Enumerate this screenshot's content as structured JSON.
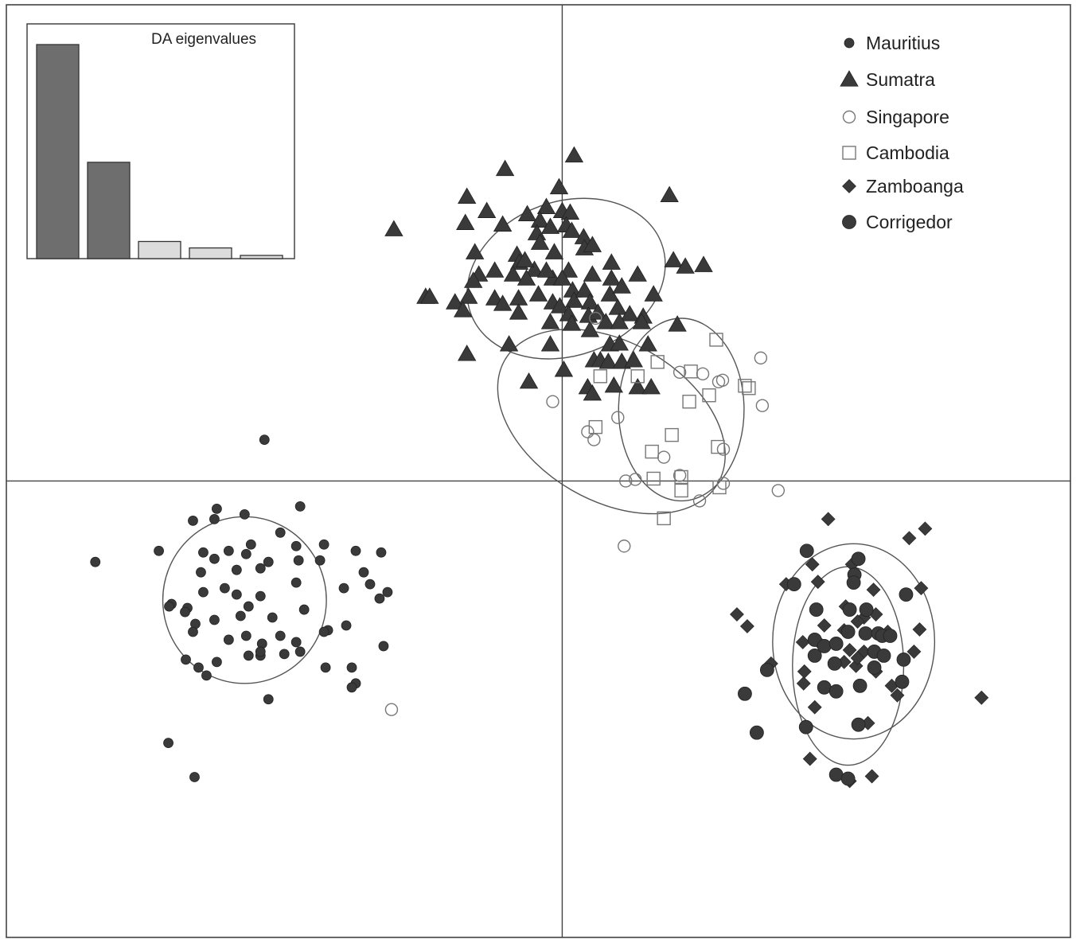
{
  "chart_data": {
    "type": "scatter",
    "title": "",
    "xlabel": "",
    "ylabel": "",
    "xlim": [
      -7,
      6.4
    ],
    "ylim": [
      -5.75,
      6
    ],
    "axes_cross_at": [
      0,
      0
    ],
    "grid": false,
    "legend_position": "top-right",
    "series": [
      {
        "name": "Mauritius",
        "marker": "small-filled-circle",
        "color": "#3a3a3a",
        "ellipse": {
          "cx": -4.0,
          "cy": -1.5,
          "rx": 1.03,
          "ry": 1.05,
          "angle": 0
        },
        "points": [
          [
            -3.75,
            0.52
          ],
          [
            -5.88,
            -1.02
          ],
          [
            -5.08,
            -0.88
          ],
          [
            -4.65,
            -0.5
          ],
          [
            -4.38,
            -0.48
          ],
          [
            -4.35,
            -0.35
          ],
          [
            -4.0,
            -0.42
          ],
          [
            -3.92,
            -0.8
          ],
          [
            -3.3,
            -0.32
          ],
          [
            -4.52,
            -0.9
          ],
          [
            -4.38,
            -0.98
          ],
          [
            -4.2,
            -0.88
          ],
          [
            -3.98,
            -0.92
          ],
          [
            -3.7,
            -1.02
          ],
          [
            -3.55,
            -0.65
          ],
          [
            -3.35,
            -0.82
          ],
          [
            -3.0,
            -0.8
          ],
          [
            -2.6,
            -0.88
          ],
          [
            -2.28,
            -0.9
          ],
          [
            -4.55,
            -1.15
          ],
          [
            -4.1,
            -1.12
          ],
          [
            -3.8,
            -1.1
          ],
          [
            -3.32,
            -1.0
          ],
          [
            -3.05,
            -1.0
          ],
          [
            -2.5,
            -1.15
          ],
          [
            -2.42,
            -1.3
          ],
          [
            -4.92,
            -1.55
          ],
          [
            -4.72,
            -1.6
          ],
          [
            -4.52,
            -1.4
          ],
          [
            -4.25,
            -1.35
          ],
          [
            -4.1,
            -1.43
          ],
          [
            -3.8,
            -1.45
          ],
          [
            -3.35,
            -1.28
          ],
          [
            -2.75,
            -1.35
          ],
          [
            -2.2,
            -1.4
          ],
          [
            -2.3,
            -1.48
          ],
          [
            -4.95,
            -1.58
          ],
          [
            -4.75,
            -1.65
          ],
          [
            -4.62,
            -1.8
          ],
          [
            -4.38,
            -1.75
          ],
          [
            -4.05,
            -1.7
          ],
          [
            -3.95,
            -1.58
          ],
          [
            -3.65,
            -1.72
          ],
          [
            -3.25,
            -1.62
          ],
          [
            -2.95,
            -1.88
          ],
          [
            -4.65,
            -1.9
          ],
          [
            -4.2,
            -2.0
          ],
          [
            -3.98,
            -1.95
          ],
          [
            -3.78,
            -2.05
          ],
          [
            -3.55,
            -1.95
          ],
          [
            -3.35,
            -2.03
          ],
          [
            -3.0,
            -1.9
          ],
          [
            -2.72,
            -1.82
          ],
          [
            -2.25,
            -2.08
          ],
          [
            -4.74,
            -2.25
          ],
          [
            -4.58,
            -2.35
          ],
          [
            -4.35,
            -2.28
          ],
          [
            -4.48,
            -2.45
          ],
          [
            -3.8,
            -2.2
          ],
          [
            -3.95,
            -2.2
          ],
          [
            -3.8,
            -2.15
          ],
          [
            -3.5,
            -2.18
          ],
          [
            -3.3,
            -2.15
          ],
          [
            -2.98,
            -2.35
          ],
          [
            -2.6,
            -2.55
          ],
          [
            -3.7,
            -2.75
          ],
          [
            -2.65,
            -2.35
          ],
          [
            -4.96,
            -3.3
          ],
          [
            -4.63,
            -3.73
          ],
          [
            -2.65,
            -2.6
          ]
        ]
      },
      {
        "name": "Sumatra",
        "marker": "filled-triangle",
        "color": "#3a3a3a",
        "ellipse": {
          "cx": 0.05,
          "cy": 2.55,
          "rx": 1.28,
          "ry": 0.97,
          "angle": 20
        },
        "points": [
          [
            0.15,
            4.1
          ],
          [
            -0.72,
            3.93
          ],
          [
            -0.04,
            3.7
          ],
          [
            0.0,
            3.4
          ],
          [
            1.35,
            3.6
          ],
          [
            -1.2,
            3.58
          ],
          [
            -0.95,
            3.4
          ],
          [
            -0.2,
            3.45
          ],
          [
            -0.44,
            3.36
          ],
          [
            -0.28,
            3.28
          ],
          [
            -0.15,
            3.2
          ],
          [
            0.1,
            3.38
          ],
          [
            0.05,
            3.22
          ],
          [
            -1.22,
            3.25
          ],
          [
            -0.75,
            3.23
          ],
          [
            -0.32,
            3.12
          ],
          [
            0.12,
            3.15
          ],
          [
            0.27,
            3.07
          ],
          [
            -2.12,
            3.17
          ],
          [
            -1.1,
            2.88
          ],
          [
            -0.57,
            2.85
          ],
          [
            -0.28,
            3.0
          ],
          [
            -0.1,
            2.88
          ],
          [
            0.28,
            2.93
          ],
          [
            0.38,
            2.97
          ],
          [
            0.62,
            2.75
          ],
          [
            1.4,
            2.78
          ],
          [
            1.55,
            2.7
          ],
          [
            1.78,
            2.72
          ],
          [
            -0.54,
            2.75
          ],
          [
            -0.35,
            2.66
          ],
          [
            -0.12,
            2.55
          ],
          [
            0.08,
            2.65
          ],
          [
            -1.05,
            2.6
          ],
          [
            -0.85,
            2.65
          ],
          [
            -0.47,
            2.78
          ],
          [
            -1.12,
            2.52
          ],
          [
            -0.62,
            2.6
          ],
          [
            -0.45,
            2.55
          ],
          [
            -0.2,
            2.65
          ],
          [
            0.0,
            2.55
          ],
          [
            0.13,
            2.4
          ],
          [
            0.38,
            2.6
          ],
          [
            0.62,
            2.55
          ],
          [
            0.95,
            2.6
          ],
          [
            -1.72,
            2.32
          ],
          [
            -1.67,
            2.32
          ],
          [
            -1.35,
            2.25
          ],
          [
            -1.18,
            2.32
          ],
          [
            -0.85,
            2.3
          ],
          [
            -0.55,
            2.3
          ],
          [
            -0.3,
            2.35
          ],
          [
            -0.12,
            2.25
          ],
          [
            0.15,
            2.27
          ],
          [
            0.28,
            2.4
          ],
          [
            0.35,
            2.25
          ],
          [
            0.6,
            2.35
          ],
          [
            0.75,
            2.45
          ],
          [
            1.15,
            2.35
          ],
          [
            -1.25,
            2.15
          ],
          [
            -0.75,
            2.23
          ],
          [
            -0.55,
            2.12
          ],
          [
            -0.03,
            2.2
          ],
          [
            0.08,
            2.1
          ],
          [
            0.33,
            2.08
          ],
          [
            0.45,
            2.12
          ],
          [
            0.7,
            2.18
          ],
          [
            0.85,
            2.1
          ],
          [
            1.02,
            2.07
          ],
          [
            -0.15,
            2.0
          ],
          [
            0.12,
            1.98
          ],
          [
            0.35,
            1.9
          ],
          [
            0.55,
            2.0
          ],
          [
            0.72,
            2.0
          ],
          [
            1.0,
            2.0
          ],
          [
            1.45,
            1.97
          ],
          [
            -1.2,
            1.6
          ],
          [
            -0.67,
            1.72
          ],
          [
            -0.15,
            1.72
          ],
          [
            0.6,
            1.72
          ],
          [
            0.72,
            1.73
          ],
          [
            1.08,
            1.72
          ],
          [
            0.4,
            1.52
          ],
          [
            0.48,
            1.52
          ],
          [
            0.58,
            1.5
          ],
          [
            0.75,
            1.5
          ],
          [
            0.9,
            1.52
          ],
          [
            0.02,
            1.4
          ],
          [
            -0.42,
            1.25
          ],
          [
            0.32,
            1.18
          ],
          [
            0.65,
            1.2
          ],
          [
            0.95,
            1.18
          ],
          [
            1.12,
            1.18
          ],
          [
            0.38,
            1.1
          ]
        ]
      },
      {
        "name": "Singapore",
        "marker": "open-circle",
        "color": "#777777",
        "ellipse": {
          "cx": 0.62,
          "cy": 0.75,
          "rx": 1.55,
          "ry": 1.0,
          "angle": -30
        },
        "points": [
          [
            0.42,
            2.05
          ],
          [
            2.5,
            1.55
          ],
          [
            1.48,
            1.37
          ],
          [
            1.77,
            1.35
          ],
          [
            1.97,
            1.25
          ],
          [
            2.02,
            1.27
          ],
          [
            2.52,
            0.95
          ],
          [
            -0.12,
            1.0
          ],
          [
            0.7,
            0.8
          ],
          [
            0.32,
            0.62
          ],
          [
            0.4,
            0.52
          ],
          [
            2.03,
            0.4
          ],
          [
            1.28,
            0.3
          ],
          [
            0.92,
            0.02
          ],
          [
            0.8,
            0.0
          ],
          [
            1.48,
            0.07
          ],
          [
            2.03,
            -0.03
          ],
          [
            2.72,
            -0.12
          ],
          [
            1.73,
            -0.25
          ],
          [
            0.78,
            -0.82
          ],
          [
            -2.15,
            -2.88
          ]
        ]
      },
      {
        "name": "Cambodia",
        "marker": "open-square",
        "color": "#777777",
        "ellipse": {
          "cx": 1.5,
          "cy": 0.9,
          "rx": 0.79,
          "ry": 1.15,
          "angle": 0
        },
        "points": [
          [
            1.94,
            1.78
          ],
          [
            0.48,
            1.32
          ],
          [
            1.2,
            1.5
          ],
          [
            1.62,
            1.38
          ],
          [
            1.85,
            1.08
          ],
          [
            2.3,
            1.2
          ],
          [
            2.35,
            1.17
          ],
          [
            0.95,
            1.32
          ],
          [
            1.6,
            1.0
          ],
          [
            0.42,
            0.68
          ],
          [
            1.38,
            0.58
          ],
          [
            1.13,
            0.37
          ],
          [
            1.96,
            0.43
          ],
          [
            1.15,
            0.03
          ],
          [
            1.5,
            0.05
          ],
          [
            1.5,
            -0.12
          ],
          [
            1.98,
            -0.08
          ],
          [
            1.28,
            -0.47
          ]
        ]
      },
      {
        "name": "Zamboanga",
        "marker": "filled-diamond",
        "color": "#3a3a3a",
        "ellipse": {
          "cx": 3.67,
          "cy": -2.02,
          "rx": 1.02,
          "ry": 1.23,
          "angle": 0
        },
        "points": [
          [
            3.35,
            -0.48
          ],
          [
            4.37,
            -0.72
          ],
          [
            4.57,
            -0.6
          ],
          [
            3.15,
            -1.05
          ],
          [
            3.65,
            -1.05
          ],
          [
            2.82,
            -1.3
          ],
          [
            3.22,
            -1.27
          ],
          [
            3.92,
            -1.37
          ],
          [
            4.52,
            -1.35
          ],
          [
            2.2,
            -1.68
          ],
          [
            2.33,
            -1.83
          ],
          [
            3.57,
            -1.58
          ],
          [
            3.8,
            -1.72
          ],
          [
            3.95,
            -1.68
          ],
          [
            3.3,
            -1.82
          ],
          [
            3.55,
            -1.88
          ],
          [
            3.72,
            -1.77
          ],
          [
            4.1,
            -1.9
          ],
          [
            4.5,
            -1.87
          ],
          [
            3.03,
            -2.03
          ],
          [
            3.25,
            -2.05
          ],
          [
            3.62,
            -2.13
          ],
          [
            3.8,
            -2.15
          ],
          [
            4.43,
            -2.15
          ],
          [
            2.63,
            -2.3
          ],
          [
            3.05,
            -2.4
          ],
          [
            3.55,
            -2.28
          ],
          [
            3.7,
            -2.33
          ],
          [
            3.72,
            -2.23
          ],
          [
            3.95,
            -2.4
          ],
          [
            4.15,
            -2.58
          ],
          [
            3.04,
            -2.55
          ],
          [
            4.22,
            -2.7
          ],
          [
            3.18,
            -2.85
          ],
          [
            5.28,
            -2.73
          ],
          [
            3.85,
            -3.05
          ],
          [
            3.12,
            -3.5
          ],
          [
            3.9,
            -3.72
          ],
          [
            3.62,
            -3.78
          ]
        ]
      },
      {
        "name": "Corrigedor",
        "marker": "filled-circle",
        "color": "#3a3a3a",
        "ellipse": {
          "cx": 3.6,
          "cy": -2.33,
          "rx": 0.7,
          "ry": 1.25,
          "angle": 0
        },
        "points": [
          [
            3.08,
            -0.88
          ],
          [
            3.73,
            -0.98
          ],
          [
            3.68,
            -1.18
          ],
          [
            2.92,
            -1.3
          ],
          [
            3.67,
            -1.28
          ],
          [
            4.33,
            -1.43
          ],
          [
            3.2,
            -1.62
          ],
          [
            3.62,
            -1.62
          ],
          [
            3.83,
            -1.62
          ],
          [
            3.18,
            -2.0
          ],
          [
            3.3,
            -2.08
          ],
          [
            3.6,
            -1.9
          ],
          [
            3.82,
            -1.92
          ],
          [
            3.98,
            -1.92
          ],
          [
            4.03,
            -1.95
          ],
          [
            4.13,
            -1.95
          ],
          [
            3.18,
            -2.2
          ],
          [
            3.45,
            -2.05
          ],
          [
            3.93,
            -2.15
          ],
          [
            4.05,
            -2.2
          ],
          [
            2.58,
            -2.38
          ],
          [
            3.43,
            -2.3
          ],
          [
            4.3,
            -2.25
          ],
          [
            3.93,
            -2.35
          ],
          [
            3.3,
            -2.6
          ],
          [
            3.45,
            -2.65
          ],
          [
            3.75,
            -2.58
          ],
          [
            4.28,
            -2.53
          ],
          [
            2.3,
            -2.68
          ],
          [
            3.73,
            -3.07
          ],
          [
            2.45,
            -3.17
          ],
          [
            3.07,
            -3.1
          ],
          [
            3.45,
            -3.7
          ],
          [
            3.6,
            -3.75
          ]
        ]
      }
    ],
    "inset": {
      "title": "DA eigenvalues",
      "type": "bar",
      "values": [
        100,
        45,
        8,
        5,
        1.5
      ],
      "retained": 2,
      "colors": {
        "retained": "#6e6e6e",
        "other": "#dcdcdc"
      }
    },
    "colors": {
      "filled": "#3a3a3a",
      "open": "#777777",
      "axes": "#444444",
      "ellipse": "#555555"
    }
  }
}
